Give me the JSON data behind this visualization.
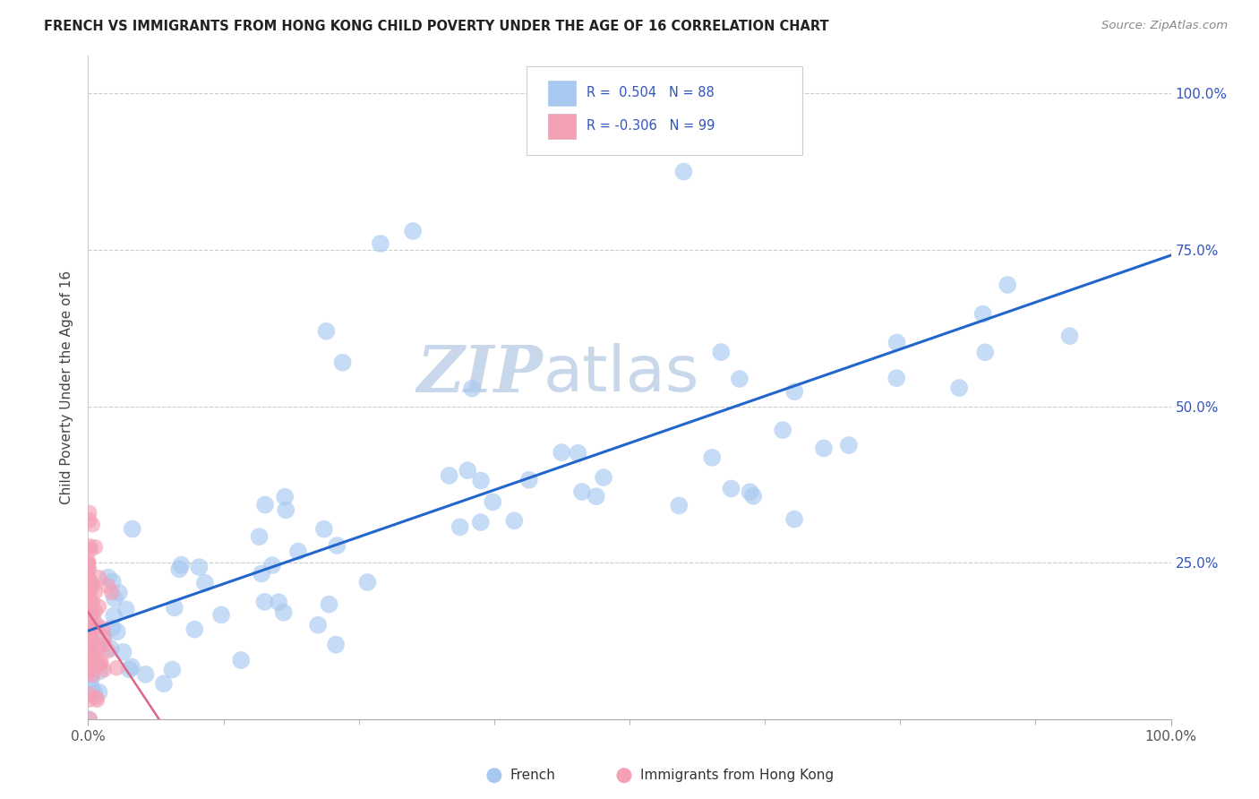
{
  "title": "FRENCH VS IMMIGRANTS FROM HONG KONG CHILD POVERTY UNDER THE AGE OF 16 CORRELATION CHART",
  "source": "Source: ZipAtlas.com",
  "ylabel": "Child Poverty Under the Age of 16",
  "r_french": 0.504,
  "n_french": 88,
  "r_hk": -0.306,
  "n_hk": 99,
  "french_color": "#a8c8f0",
  "hk_color": "#f4a0b5",
  "french_line_color": "#2266cc",
  "hk_line_color": "#dd6688",
  "watermark_zip": "ZIP",
  "watermark_atlas": "atlas",
  "watermark_color": "#c8d8ea",
  "bg_color": "#ffffff",
  "grid_color": "#cccccc",
  "ytick_labels": [
    "25.0%",
    "50.0%",
    "75.0%",
    "100.0%"
  ],
  "ytick_vals": [
    0.25,
    0.5,
    0.75,
    1.0
  ],
  "title_color": "#222222",
  "source_color": "#888888",
  "legend_label_color": "#3355bb",
  "axis_label_color": "#555555",
  "tick_color": "#3355bb"
}
